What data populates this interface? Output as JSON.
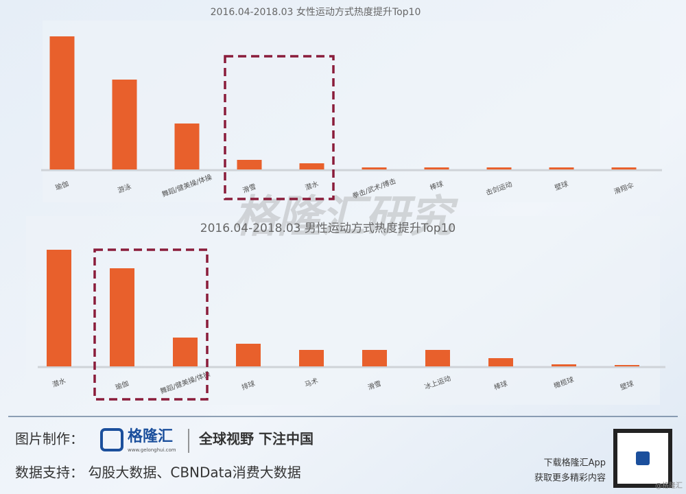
{
  "chart_data": [
    {
      "type": "bar",
      "title": "2016.04-2018.03 女性运动方式热度提升Top10",
      "color": "#e8602c",
      "categories": [
        "瑜伽",
        "游泳",
        "舞蹈/健美操/体操",
        "滑雪",
        "潜水",
        "拳击/武术/搏击",
        "棒球",
        "击剑运动",
        "壁球",
        "滑翔伞"
      ],
      "values": [
        194,
        131,
        67,
        14,
        9,
        3,
        3,
        3,
        3,
        3
      ]
    },
    {
      "type": "bar",
      "title": "2016.04-2018.03 男性运动方式热度提升Top10",
      "color": "#e8602c",
      "categories": [
        "潜水",
        "瑜伽",
        "舞蹈/健美操/体操",
        "排球",
        "马术",
        "滑雪",
        "冰上运动",
        "棒球",
        "橄榄球",
        "壁球"
      ],
      "values": [
        170,
        143,
        42,
        33,
        24,
        24,
        24,
        12,
        3,
        2
      ]
    }
  ],
  "watermark": "格隆汇研究",
  "footer": {
    "made_by": "图片制作：",
    "logo": "格隆汇",
    "logo_url": "www.gelonghui.com",
    "slogan": "全球视野 下注中国",
    "data_source": "数据支持： 勾股大数据、CBNData消费大数据",
    "app_line1": "下载格隆汇App",
    "app_line2": "获取更多精彩内容",
    "credit": "@格隆汇"
  }
}
